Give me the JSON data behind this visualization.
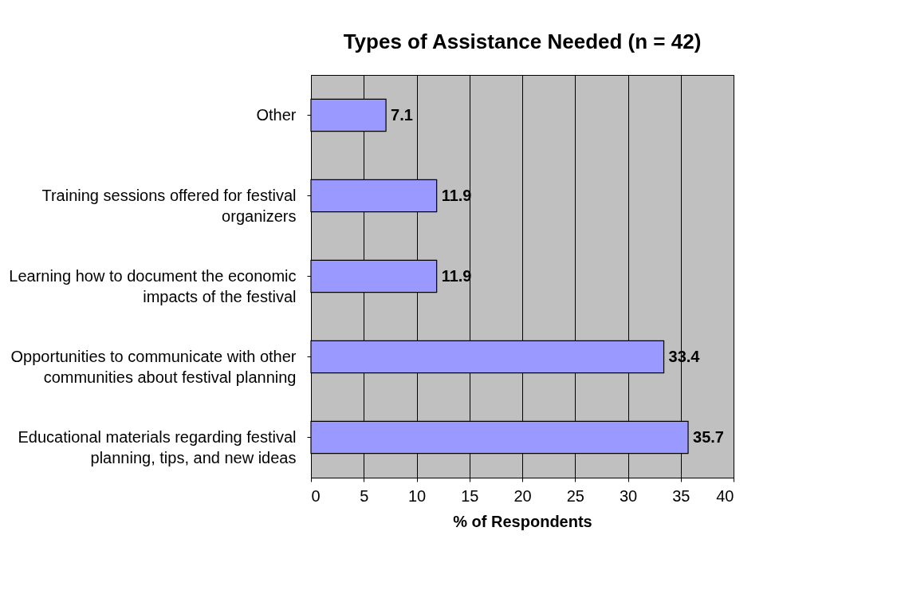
{
  "chart_data": {
    "type": "bar",
    "orientation": "horizontal",
    "title": "Types of Assistance Needed (n = 42)",
    "xlabel": "% of Respondents",
    "categories": [
      "Other",
      "Training sessions offered for festival organizers",
      "Learning how to document the economic impacts of the festival",
      "Opportunities to communicate with other communities about festival planning",
      "Educational materials regarding festival planning, tips, and new ideas"
    ],
    "values": [
      7.1,
      11.9,
      11.9,
      33.4,
      35.7
    ],
    "color": "#9999ff",
    "xlim": [
      0,
      40
    ],
    "xticks": [
      0,
      5,
      10,
      15,
      20,
      25,
      30,
      35,
      40
    ],
    "grid": "x",
    "data_labels": true
  }
}
